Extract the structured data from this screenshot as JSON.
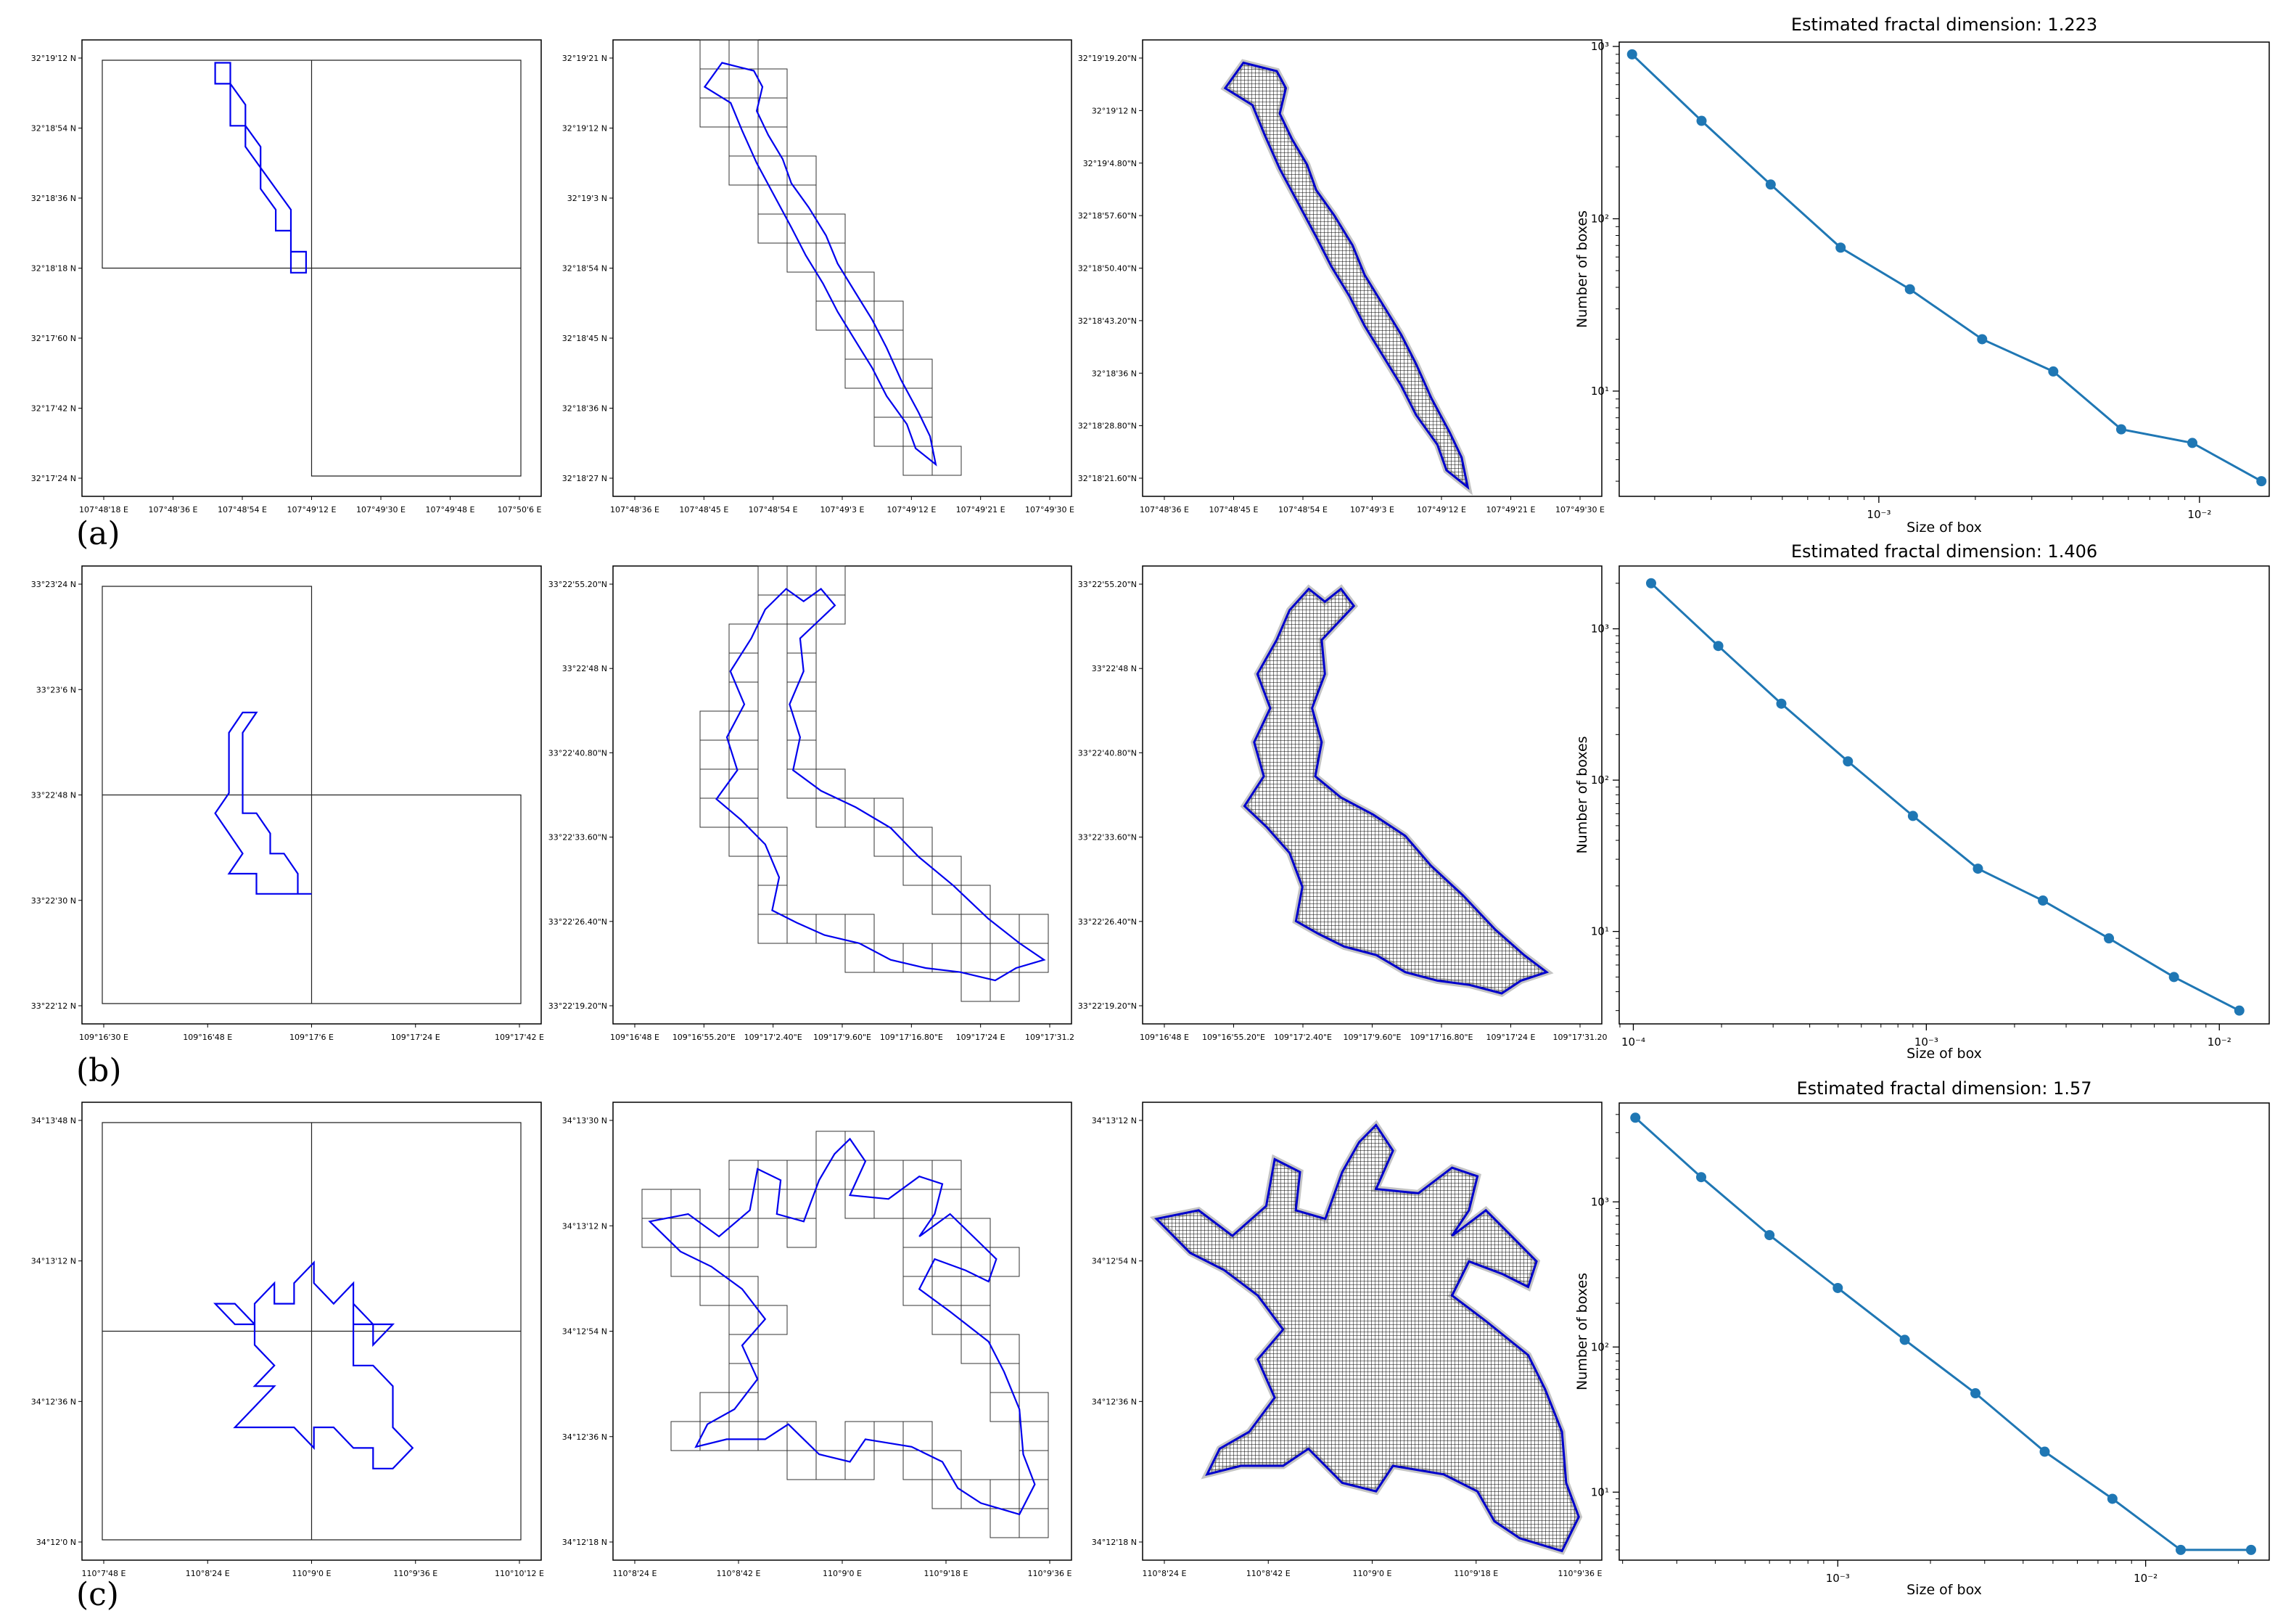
{
  "rows": [
    {
      "label": "(a)",
      "map": {
        "lat_ticks": [
          "32°19'12 N",
          "32°18'54 N",
          "32°18'36 N",
          "32°18'18 N",
          "32°17'60 N",
          "32°17'42 N",
          "32°17'24 N"
        ],
        "lon_ticks": [
          "107°48'18 E",
          "107°48'36 E",
          "107°48'54 E",
          "107°49'12 E",
          "107°49'30 E",
          "107°49'48 E",
          "107°50'6 E"
        ]
      },
      "grid": {
        "lat_ticks": [
          "32°19'21 N",
          "32°19'12 N",
          "32°19'3 N",
          "32°18'54 N",
          "32°18'45 N",
          "32°18'36 N",
          "32°18'27 N"
        ],
        "lon_ticks": [
          "107°48'36 E",
          "107°48'45 E",
          "107°48'54 E",
          "107°49'3 E",
          "107°49'12 E",
          "107°49'21 E",
          "107°49'30 E"
        ]
      },
      "fine": {
        "lat_ticks": [
          "32°19'19.20\"N",
          "32°19'12 N",
          "32°19'4.80\"N",
          "32°18'57.60\"N",
          "32°18'50.40\"N",
          "32°18'43.20\"N",
          "32°18'36 N",
          "32°18'28.80\"N",
          "32°18'21.60\"N"
        ],
        "lon_ticks": [
          "107°48'36 E",
          "107°48'45 E",
          "107°48'54 E",
          "107°49'3 E",
          "107°49'12 E",
          "107°49'21 E",
          "107°49'30 E"
        ]
      }
    },
    {
      "label": "(b)",
      "map": {
        "lat_ticks": [
          "33°23'24 N",
          "33°23'6 N",
          "33°22'48 N",
          "33°22'30 N",
          "33°22'12 N"
        ],
        "lon_ticks": [
          "109°16'30 E",
          "109°16'48 E",
          "109°17'6 E",
          "109°17'24 E",
          "109°17'42 E"
        ]
      },
      "grid": {
        "lat_ticks": [
          "33°22'55.20\"N",
          "33°22'48 N",
          "33°22'40.80\"N",
          "33°22'33.60\"N",
          "33°22'26.40\"N",
          "33°22'19.20\"N"
        ],
        "lon_ticks": [
          "109°16'48 E",
          "109°16'55.20\"E",
          "109°17'2.40\"E",
          "109°17'9.60\"E",
          "109°17'16.80\"E",
          "109°17'24 E",
          "109°17'31.2"
        ]
      },
      "fine": {
        "lat_ticks": [
          "33°22'55.20\"N",
          "33°22'48 N",
          "33°22'40.80\"N",
          "33°22'33.60\"N",
          "33°22'26.40\"N",
          "33°22'19.20\"N"
        ],
        "lon_ticks": [
          "109°16'48 E",
          "109°16'55.20\"E",
          "109°17'2.40\"E",
          "109°17'9.60\"E",
          "109°17'16.80\"E",
          "109°17'24 E",
          "109°17'31.20"
        ]
      }
    },
    {
      "label": "(c)",
      "map": {
        "lat_ticks": [
          "34°13'48 N",
          "34°13'12 N",
          "34°12'36 N",
          "34°12'0 N"
        ],
        "lon_ticks": [
          "110°7'48 E",
          "110°8'24 E",
          "110°9'0 E",
          "110°9'36 E",
          "110°10'12 E"
        ]
      },
      "grid": {
        "lat_ticks": [
          "34°13'30 N",
          "34°13'12 N",
          "34°12'54 N",
          "34°12'36 N",
          "34°12'18 N"
        ],
        "lon_ticks": [
          "110°8'24 E",
          "110°8'42 E",
          "110°9'0 E",
          "110°9'18 E",
          "110°9'36 E"
        ]
      },
      "fine": {
        "lat_ticks": [
          "34°13'12 N",
          "34°12'54 N",
          "34°12'36 N",
          "34°12'18 N"
        ],
        "lon_ticks": [
          "110°8'24 E",
          "110°8'42 E",
          "110°9'0 E",
          "110°9'18 E",
          "110°9'36 E"
        ]
      }
    }
  ],
  "chart_data": [
    {
      "type": "line",
      "title": "Estimated fractal dimension:  1.223",
      "xlabel": "Size of box",
      "ylabel": "Number of boxes",
      "xscale": "log",
      "yscale": "log",
      "xlim": [
        0.000155,
        0.0165
      ],
      "ylim": [
        2.45,
        1060
      ],
      "x_ticks": [
        {
          "value": 0.001,
          "label": "10⁻³"
        },
        {
          "value": 0.01,
          "label": "10⁻²"
        }
      ],
      "y_ticks": [
        {
          "value": 10,
          "label": "10¹"
        },
        {
          "value": 100,
          "label": "10²"
        },
        {
          "value": 1000,
          "label": "10³"
        }
      ],
      "color": "#1f77b4",
      "series": [
        {
          "x": [
            0.00017,
            0.00028,
            0.00046,
            0.00076,
            0.00125,
            0.0021,
            0.0035,
            0.0057,
            0.0095,
            0.0156
          ],
          "y": [
            900,
            370,
            158,
            68,
            39,
            20,
            13,
            6,
            5,
            3
          ]
        }
      ]
    },
    {
      "type": "line",
      "title": "Estimated fractal dimension:  1.406",
      "xlabel": "Size of box",
      "ylabel": "Number of boxes",
      "xscale": "log",
      "yscale": "log",
      "xlim": [
        8.95e-05,
        0.0148
      ],
      "ylim": [
        2.45,
        2600
      ],
      "x_ticks": [
        {
          "value": 0.0001,
          "label": "10⁻⁴"
        },
        {
          "value": 0.001,
          "label": "10⁻³"
        },
        {
          "value": 0.01,
          "label": "10⁻²"
        }
      ],
      "y_ticks": [
        {
          "value": 10,
          "label": "10¹"
        },
        {
          "value": 100,
          "label": "10²"
        },
        {
          "value": 1000,
          "label": "10³"
        }
      ],
      "color": "#1f77b4",
      "series": [
        {
          "x": [
            0.000115,
            0.000195,
            0.00032,
            0.00054,
            0.0009,
            0.0015,
            0.0025,
            0.0042,
            0.007,
            0.0117
          ],
          "y": [
            2000,
            770,
            320,
            133,
            58,
            26,
            16,
            9,
            5,
            3
          ]
        }
      ]
    },
    {
      "type": "line",
      "title": "Estimated fractal dimension:  1.57",
      "xlabel": "Size of box",
      "ylabel": "Number of boxes",
      "xscale": "log",
      "yscale": "log",
      "xlim": [
        0.000195,
        0.0252
      ],
      "ylim": [
        3.4,
        4800
      ],
      "x_ticks": [
        {
          "value": 0.001,
          "label": "10⁻³"
        },
        {
          "value": 0.01,
          "label": "10⁻²"
        }
      ],
      "y_ticks": [
        {
          "value": 10,
          "label": "10¹"
        },
        {
          "value": 100,
          "label": "10²"
        },
        {
          "value": 1000,
          "label": "10³"
        }
      ],
      "color": "#1f77b4",
      "series": [
        {
          "x": [
            0.00022,
            0.00036,
            0.0006,
            0.001,
            0.00165,
            0.0028,
            0.0047,
            0.0078,
            0.013,
            0.022
          ],
          "y": [
            3800,
            1480,
            590,
            255,
            112,
            48,
            19,
            9,
            4,
            4
          ]
        }
      ]
    }
  ]
}
